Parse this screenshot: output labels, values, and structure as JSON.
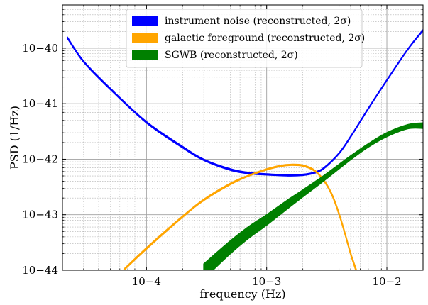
{
  "chart_data": {
    "type": "area",
    "title": "",
    "xlabel": "frequency (Hz)",
    "ylabel": "PSD (1/Hz)",
    "xscale": "log",
    "yscale": "log",
    "xlim": [
      2e-05,
      0.02
    ],
    "ylim": [
      1e-44,
      6e-40
    ],
    "x_ticks": [
      {
        "value": 0.0001,
        "label": "10−4"
      },
      {
        "value": 0.001,
        "label": "10−3"
      },
      {
        "value": 0.01,
        "label": "10−2"
      }
    ],
    "y_ticks": [
      {
        "value": 1e-44,
        "label": "10−44"
      },
      {
        "value": 1e-43,
        "label": "10−43"
      },
      {
        "value": 1e-42,
        "label": "10−42"
      },
      {
        "value": 1e-41,
        "label": "10−41"
      },
      {
        "value": 1e-40,
        "label": "10−40"
      }
    ],
    "grid": true,
    "legend_position": "top-center",
    "series": [
      {
        "name": "instrument noise (reconstructed, 2σ)",
        "color": "#0000ff",
        "x": [
          2.2e-05,
          3e-05,
          5e-05,
          0.0001,
          0.0002,
          0.0003,
          0.0005,
          0.0007,
          0.001,
          0.0015,
          0.002,
          0.0025,
          0.003,
          0.004,
          0.005,
          0.007,
          0.01,
          0.015,
          0.02
        ],
        "lower": [
          1.5e-40,
          5.6e-41,
          1.8e-41,
          4.5e-42,
          1.6e-42,
          9.5e-43,
          6.3e-43,
          5.5e-43,
          5.2e-43,
          5e-43,
          5.1e-43,
          5.6e-43,
          6.8e-43,
          1.25e-42,
          2.5e-42,
          8e-42,
          2.6e-41,
          9.5e-41,
          2.05e-40
        ],
        "upper": [
          1.58e-40,
          5.9e-41,
          1.9e-41,
          4.75e-42,
          1.7e-42,
          1e-42,
          6.7e-43,
          5.8e-43,
          5.45e-43,
          5.25e-43,
          5.35e-43,
          5.85e-43,
          7.1e-43,
          1.3e-42,
          2.6e-42,
          8.3e-42,
          2.7e-41,
          9.8e-41,
          2.15e-40
        ]
      },
      {
        "name": "galactic foreground (reconstructed, 2σ)",
        "color": "#ffa500",
        "x": [
          6.5e-05,
          0.0001,
          0.0002,
          0.0003,
          0.0005,
          0.0007,
          0.001,
          0.0013,
          0.0016,
          0.002,
          0.0025,
          0.003,
          0.0035,
          0.004,
          0.0045,
          0.005,
          0.0056
        ],
        "lower": [
          1e-44,
          2.4e-44,
          9e-44,
          1.8e-43,
          3.5e-43,
          4.9e-43,
          6.4e-43,
          7.4e-43,
          7.75e-43,
          7.5e-43,
          6.1e-43,
          4e-43,
          2.2e-43,
          1e-43,
          4.3e-44,
          1.9e-44,
          9e-45
        ],
        "upper": [
          1.05e-44,
          2.55e-44,
          9.5e-44,
          1.9e-43,
          3.7e-43,
          5.1e-43,
          6.7e-43,
          7.75e-43,
          8.1e-43,
          7.85e-43,
          6.4e-43,
          4.2e-43,
          2.35e-43,
          1.08e-43,
          4.6e-44,
          2.05e-44,
          1e-44
        ]
      },
      {
        "name": "SGWB (reconstructed, 2σ)",
        "color": "#008000",
        "x": [
          0.0003,
          0.0005,
          0.0007,
          0.001,
          0.0015,
          0.002,
          0.003,
          0.005,
          0.007,
          0.01,
          0.015,
          0.02
        ],
        "lower": [
          7e-45,
          2e-44,
          3.7e-44,
          6.5e-44,
          1.3e-43,
          2.1e-43,
          4.1e-43,
          9.8e-43,
          1.65e-42,
          2.55e-42,
          3.55e-42,
          3.6e-42
        ],
        "upper": [
          1.3e-44,
          3.4e-44,
          6e-44,
          1e-43,
          1.85e-43,
          2.8e-43,
          5.1e-43,
          1.15e-42,
          1.9e-42,
          3e-42,
          4.2e-42,
          4.5e-42
        ]
      }
    ]
  }
}
